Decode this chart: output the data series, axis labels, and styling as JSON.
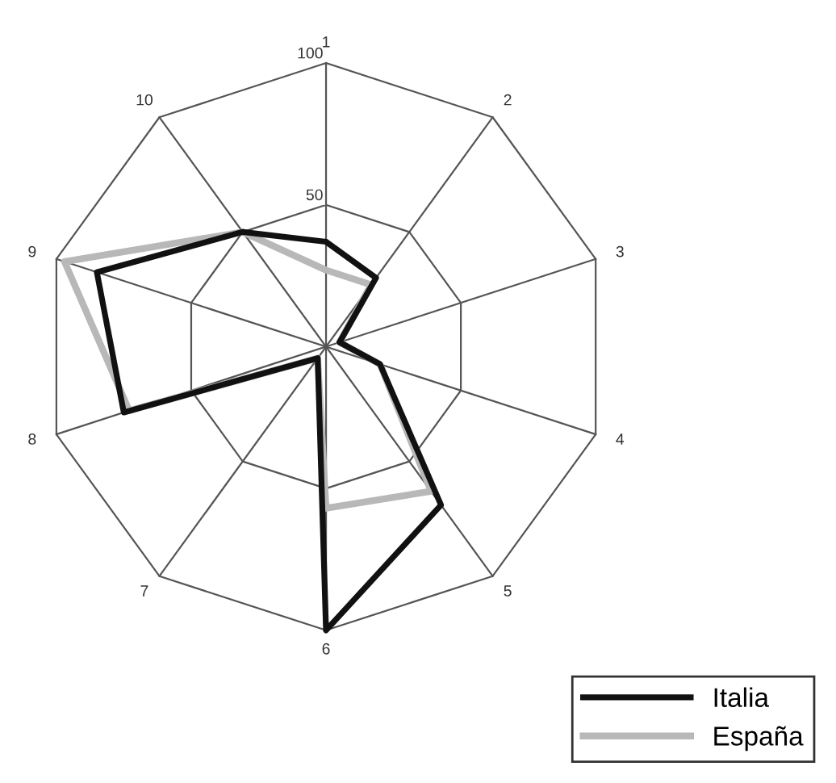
{
  "chart_data": {
    "type": "radar",
    "categories": [
      "1",
      "2",
      "3",
      "4",
      "5",
      "6",
      "7",
      "8",
      "9",
      "10"
    ],
    "series": [
      {
        "name": "Italia",
        "color": "#111111",
        "values": [
          37,
          30,
          5,
          20,
          69,
          100,
          5,
          75,
          85,
          50
        ]
      },
      {
        "name": "España",
        "color": "#b8b8b8",
        "values": [
          27,
          27,
          5,
          20,
          63,
          57,
          5,
          73,
          97,
          50
        ]
      }
    ],
    "ylim": [
      0,
      100
    ],
    "yticks": [
      50,
      100
    ],
    "grid": true,
    "legend": "bottom right",
    "marker": "none",
    "line_style": "solid"
  }
}
